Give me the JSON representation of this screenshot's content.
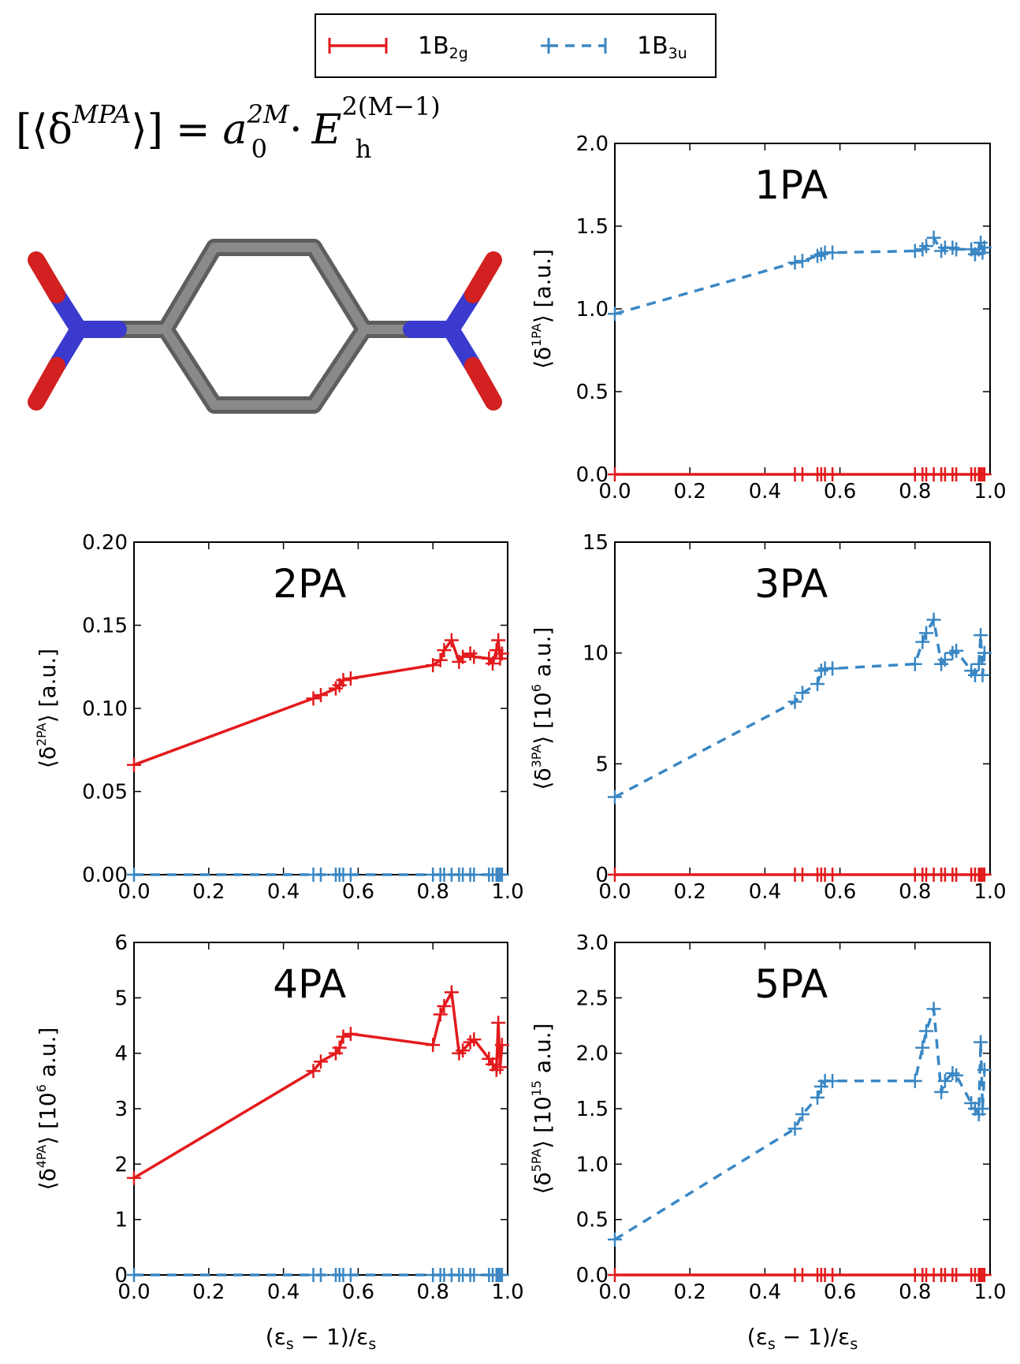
{
  "formula": {
    "lhs_open": "[⟨δ",
    "lhs_sup": "MPA",
    "lhs_close": "⟩]",
    "eq": "=",
    "a": "a",
    "a_sub": "0",
    "a_sup": "2M",
    "dot": "·",
    "e": "E",
    "e_sub": "h",
    "e_sup": "2(M−1)"
  },
  "legend": {
    "placement": "top-center",
    "entries": [
      {
        "base": "1B",
        "sub": "2g",
        "color": "#e31a1c",
        "style": "solid"
      },
      {
        "base": "1B",
        "sub": "3u",
        "color": "#3a87c4",
        "style": "dashed"
      }
    ]
  },
  "shared": {
    "xlabel": {
      "open": "(ε",
      "sub1": "s",
      "mid": " − 1)/ε",
      "sub2": "s"
    },
    "x": [
      0.0,
      0.48,
      0.5,
      0.54,
      0.55,
      0.56,
      0.58,
      0.8,
      0.82,
      0.83,
      0.85,
      0.87,
      0.88,
      0.9,
      0.91,
      0.95,
      0.96,
      0.97,
      0.975,
      0.98,
      0.985
    ],
    "xticks": [
      "0.0",
      "0.2",
      "0.4",
      "0.6",
      "0.8",
      "1.0"
    ]
  },
  "chart_data": [
    {
      "type": "line",
      "title": "1PA",
      "xlim": [
        0,
        1
      ],
      "ylim": [
        0,
        2.0
      ],
      "yticks": [
        "0.0",
        "0.5",
        "1.0",
        "1.5",
        "2.0"
      ],
      "ylabel": {
        "pre": "⟨δ",
        "sup": "1PA",
        "post": "⟩ [a.u.]"
      },
      "series": [
        {
          "entry": 0,
          "values": [
            0,
            0,
            0,
            0,
            0,
            0,
            0,
            0,
            0,
            0,
            0,
            0,
            0,
            0,
            0,
            0,
            0,
            0,
            0,
            0,
            0
          ]
        },
        {
          "entry": 1,
          "values": [
            0.97,
            1.28,
            1.29,
            1.32,
            1.33,
            1.34,
            1.34,
            1.35,
            1.36,
            1.38,
            1.43,
            1.35,
            1.37,
            1.37,
            1.36,
            1.36,
            1.33,
            1.36,
            1.4,
            1.34,
            1.37
          ]
        }
      ]
    },
    {
      "type": "line",
      "title": "2PA",
      "xlim": [
        0,
        1
      ],
      "ylim": [
        0,
        0.2
      ],
      "yticks": [
        "0.00",
        "0.05",
        "0.10",
        "0.15",
        "0.20"
      ],
      "ylabel": {
        "pre": "⟨δ",
        "sup": "2PA",
        "post": "⟩ [a.u.]"
      },
      "series": [
        {
          "entry": 0,
          "values": [
            0.066,
            0.106,
            0.108,
            0.112,
            0.114,
            0.117,
            0.118,
            0.126,
            0.129,
            0.135,
            0.141,
            0.128,
            0.131,
            0.133,
            0.131,
            0.13,
            0.127,
            0.135,
            0.141,
            0.13,
            0.133
          ]
        },
        {
          "entry": 1,
          "values": [
            0,
            0,
            0,
            0,
            0,
            0,
            0,
            0,
            0,
            0,
            0,
            0,
            0,
            0,
            0,
            0,
            0,
            0,
            0,
            0,
            0
          ]
        }
      ]
    },
    {
      "type": "line",
      "title": "3PA",
      "xlim": [
        0,
        1
      ],
      "ylim": [
        0,
        15
      ],
      "yticks": [
        "0",
        "5",
        "10",
        "15"
      ],
      "ylabel": {
        "pre": "⟨δ",
        "sup": "3PA",
        "post": "⟩ [10",
        "post_sup": "6",
        "post_end": " a.u.]"
      },
      "series": [
        {
          "entry": 0,
          "values": [
            0,
            0,
            0,
            0,
            0,
            0,
            0,
            0,
            0,
            0,
            0,
            0,
            0,
            0,
            0,
            0,
            0,
            0,
            0,
            0,
            0
          ]
        },
        {
          "entry": 1,
          "values": [
            3.5,
            7.8,
            8.2,
            8.6,
            9.2,
            9.3,
            9.3,
            9.5,
            10.5,
            10.9,
            11.5,
            9.5,
            9.7,
            10.0,
            10.1,
            9.2,
            9.0,
            9.5,
            10.8,
            9.0,
            10.0
          ]
        }
      ]
    },
    {
      "type": "line",
      "title": "4PA",
      "xlim": [
        0,
        1
      ],
      "ylim": [
        0,
        6
      ],
      "yticks": [
        "0",
        "1",
        "2",
        "3",
        "4",
        "5",
        "6"
      ],
      "ylabel": {
        "pre": "⟨δ",
        "sup": "4PA",
        "post": "⟩ [10",
        "post_sup": "6",
        "post_end": " a.u.]"
      },
      "series": [
        {
          "entry": 0,
          "values": [
            1.75,
            3.68,
            3.85,
            4.0,
            4.1,
            4.3,
            4.35,
            4.15,
            4.7,
            4.85,
            5.1,
            4.0,
            4.05,
            4.2,
            4.25,
            3.9,
            3.8,
            3.7,
            4.55,
            3.75,
            4.15
          ]
        },
        {
          "entry": 1,
          "values": [
            0,
            0,
            0,
            0,
            0,
            0,
            0,
            0,
            0,
            0,
            0,
            0,
            0,
            0,
            0,
            0,
            0,
            0,
            0,
            0,
            0
          ]
        }
      ]
    },
    {
      "type": "line",
      "title": "5PA",
      "xlim": [
        0,
        1
      ],
      "ylim": [
        0,
        3.0
      ],
      "yticks": [
        "0.0",
        "0.5",
        "1.0",
        "1.5",
        "2.0",
        "2.5",
        "3.0"
      ],
      "ylabel": {
        "pre": "⟨δ",
        "sup": "5PA",
        "post": "⟩ [10",
        "post_sup": "15",
        "post_end": " a.u.]"
      },
      "series": [
        {
          "entry": 0,
          "values": [
            0,
            0,
            0,
            0,
            0,
            0,
            0,
            0,
            0,
            0,
            0,
            0,
            0,
            0,
            0,
            0,
            0,
            0,
            0,
            0,
            0
          ]
        },
        {
          "entry": 1,
          "values": [
            0.32,
            1.32,
            1.45,
            1.6,
            1.7,
            1.75,
            1.75,
            1.75,
            2.05,
            2.2,
            2.4,
            1.65,
            1.75,
            1.82,
            1.8,
            1.55,
            1.5,
            1.45,
            2.1,
            1.5,
            1.85
          ]
        }
      ]
    }
  ]
}
